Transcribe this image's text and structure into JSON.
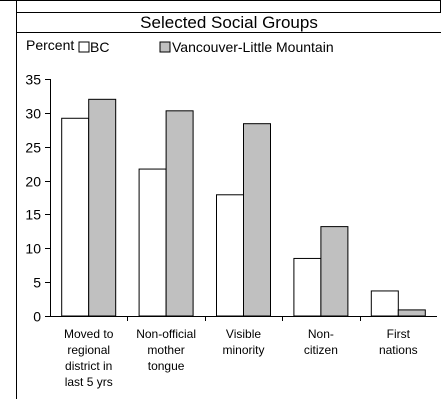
{
  "chart_data": {
    "type": "bar",
    "title": "Selected Social Groups",
    "ylabel": "Percent",
    "xlabel": "",
    "ylim": [
      0,
      35
    ],
    "yticks": [
      0,
      5,
      10,
      15,
      20,
      25,
      30,
      35
    ],
    "grid": false,
    "legend_position": "top",
    "categories": [
      [
        "Moved to",
        "regional",
        "district in",
        "last 5 yrs"
      ],
      [
        "Non-official",
        "mother",
        "tongue"
      ],
      [
        "Visible",
        "minority"
      ],
      [
        "Non-",
        "citizen"
      ],
      [
        "First",
        "nations"
      ]
    ],
    "series": [
      {
        "name": "BC",
        "color": "#ffffff",
        "values": [
          29.2,
          21.7,
          17.9,
          8.5,
          3.7
        ]
      },
      {
        "name": "Vancouver-Little Mountain",
        "color": "#c0c0c0",
        "values": [
          32.0,
          30.3,
          28.4,
          13.2,
          0.9
        ]
      }
    ]
  }
}
